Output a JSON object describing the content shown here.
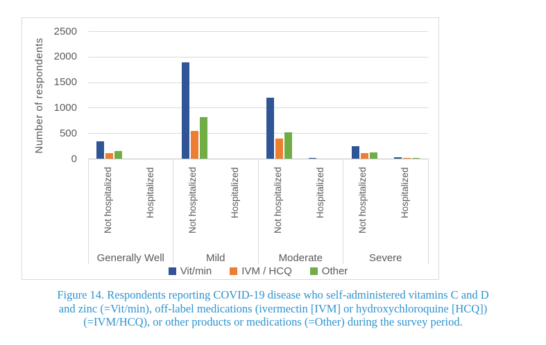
{
  "figure": {
    "caption": {
      "line1": "Figure 14. Respondents reporting COVID-19 disease who self-administered vitamins C and D",
      "line2": "and zinc (=Vit/min), off-label medications (ivermectin [IVM] or hydroxychloroquine [HCQ])",
      "line3": "(=IVM/HCQ), or other products or medications (=Other) during the survey period.",
      "text_color": "#2E93CF"
    }
  },
  "chart_data": {
    "type": "bar",
    "title": "",
    "ylabel": "Number of respondents",
    "xlabel": "",
    "ylim": [
      0,
      2500
    ],
    "yticks": [
      0,
      500,
      1000,
      1500,
      2000,
      2500
    ],
    "grid": true,
    "legend_position": "bottom",
    "group_labels": [
      "Generally Well",
      "Mild",
      "Moderate",
      "Severe"
    ],
    "categories": [
      "Not hospitalized",
      "Hospitalized",
      "Not hospitalized",
      "Hospitalized",
      "Not hospitalized",
      "Hospitalized",
      "Not hospitalized",
      "Hospitalized"
    ],
    "series": [
      {
        "name": "Vit/min",
        "color": "#2F5597",
        "values": [
          340,
          0,
          1900,
          0,
          1200,
          15,
          250,
          40
        ]
      },
      {
        "name": "IVM / HCQ",
        "color": "#ED7D31",
        "values": [
          120,
          0,
          550,
          0,
          400,
          0,
          115,
          15
        ]
      },
      {
        "name": "Other",
        "color": "#70AD47",
        "values": [
          160,
          0,
          820,
          0,
          530,
          0,
          130,
          20
        ]
      }
    ],
    "colors": {
      "gridline": "#D9D9D9",
      "axis_line": "#BFBFBF",
      "axis_text": "#595959"
    }
  }
}
